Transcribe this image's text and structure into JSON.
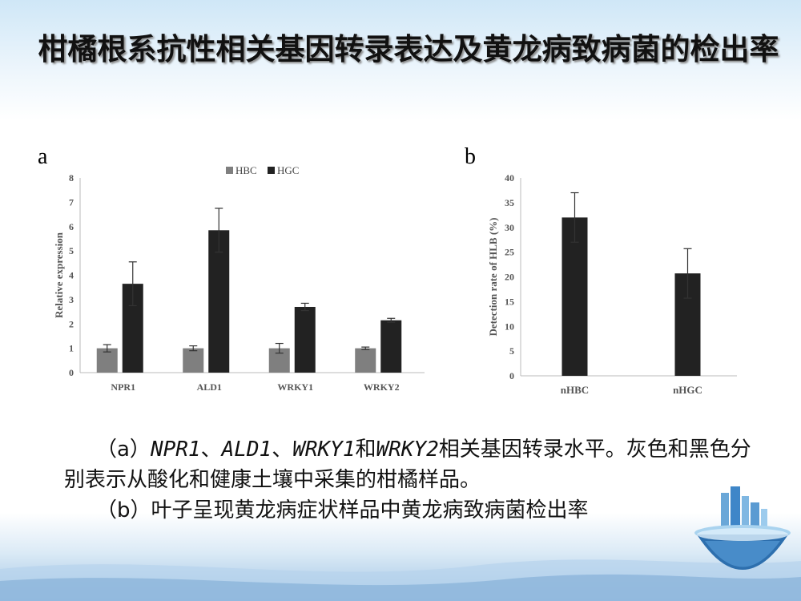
{
  "title": "柑橘根系抗性相关基因转录表达及黄龙病致病菌的检出率",
  "panels": {
    "a": "a",
    "b": "b"
  },
  "chart_data": [
    {
      "type": "bar",
      "categories": [
        "NPR1",
        "ALD1",
        "WRKY1",
        "WRKY2"
      ],
      "series": [
        {
          "name": "HBC",
          "values": [
            1.0,
            1.0,
            1.0,
            1.0
          ],
          "errors": [
            0.15,
            0.1,
            0.2,
            0.05
          ],
          "color": "#7f7f7f"
        },
        {
          "name": "HGC",
          "values": [
            3.65,
            5.85,
            2.7,
            2.15
          ],
          "errors": [
            0.9,
            0.9,
            0.15,
            0.08
          ],
          "color": "#222222"
        }
      ],
      "ylabel": "Relative expression",
      "ylim": [
        0,
        8
      ],
      "yticks": [
        0,
        1,
        2,
        3,
        4,
        5,
        6,
        7,
        8
      ],
      "legend": "top-center"
    },
    {
      "type": "bar",
      "categories": [
        "nHBC",
        "nHGC"
      ],
      "values": [
        32,
        20.7
      ],
      "errors": [
        5,
        5
      ],
      "color": "#222222",
      "ylabel": "Detection rate of HLB (%)",
      "ylim": [
        0,
        40
      ],
      "yticks": [
        0,
        5,
        10,
        15,
        20,
        25,
        30,
        35,
        40
      ]
    }
  ],
  "caption": {
    "line1": {
      "prefix": "（a）",
      "g1": "NPR1",
      "sep1": "、",
      "g2": "ALD1",
      "sep2": "、",
      "g3": "WRKY1",
      "and": "和",
      "g4": "WRKY2",
      "rest": "相关基因转录水平。灰色和黑色分别表示从酸化和健康土壤中采集的柑橘样品。"
    },
    "line2": "（b）叶子呈现黄龙病症状样品中黄龙病致病菌检出率"
  }
}
